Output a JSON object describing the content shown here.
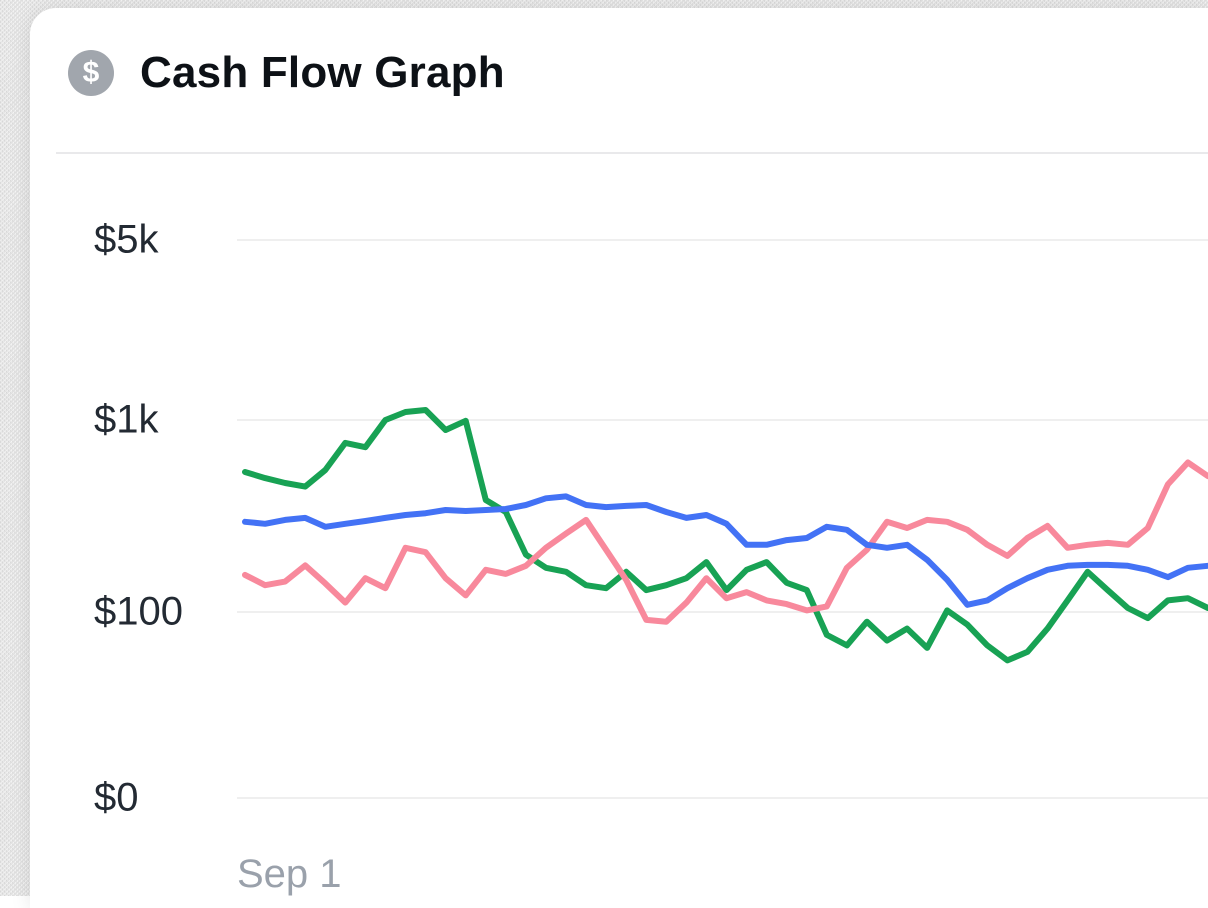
{
  "header": {
    "title": "Cash Flow Graph",
    "icon_glyph": "$"
  },
  "theme": {
    "page_bg": "#e8e8e8",
    "card_bg": "#ffffff",
    "grid_color": "#efefef",
    "axis_label_color": "#232a33",
    "muted_label_color": "#9aa1ab",
    "icon_bg": "#a1a6ad"
  },
  "chart_data": {
    "type": "line",
    "title": "Cash Flow Graph",
    "grid": true,
    "legend": "none",
    "y_axis": {
      "scale": "log",
      "unit": "USD",
      "tick_labels": [
        "$5k",
        "$1k",
        "$100",
        "$0"
      ],
      "tick_values": [
        5000,
        1000,
        100,
        0
      ]
    },
    "x_axis": {
      "tick_labels": [
        "Sep 1"
      ]
    },
    "series": [
      {
        "name": "green-line",
        "color": "#18a254",
        "values": [
          536,
          498,
          470,
          450,
          549,
          760,
          722,
          1000,
          1074,
          1094,
          887,
          991,
          383,
          332,
          199,
          170,
          162,
          138,
          133,
          162,
          130,
          138,
          150,
          182,
          130,
          166,
          182,
          142,
          130,
          76,
          67,
          89,
          71,
          82,
          65,
          102,
          86,
          67,
          56,
          62,
          82,
          115,
          162,
          130,
          105,
          93,
          115,
          118,
          105
        ]
      },
      {
        "name": "pink-line",
        "color": "#f8899c",
        "values": [
          156,
          138,
          144,
          175,
          141,
          112,
          150,
          133,
          216,
          205,
          150,
          122,
          166,
          158,
          174,
          216,
          256,
          302,
          211,
          147,
          91,
          89,
          112,
          150,
          118,
          127,
          115,
          110,
          102,
          107,
          170,
          211,
          295,
          274,
          302,
          295,
          268,
          224,
          196,
          243,
          281,
          216,
          224,
          229,
          224,
          274,
          462,
          601,
          510
        ]
      },
      {
        "name": "blue-line",
        "color": "#4372f5",
        "values": [
          295,
          288,
          302,
          309,
          278,
          288,
          298,
          309,
          320,
          327,
          340,
          336,
          340,
          344,
          361,
          391,
          400,
          361,
          352,
          357,
          361,
          332,
          309,
          320,
          288,
          224,
          224,
          237,
          243,
          278,
          268,
          224,
          216,
          224,
          187,
          147,
          109,
          115,
          133,
          150,
          166,
          174,
          176,
          176,
          174,
          166,
          152,
          170,
          174
        ]
      }
    ]
  }
}
